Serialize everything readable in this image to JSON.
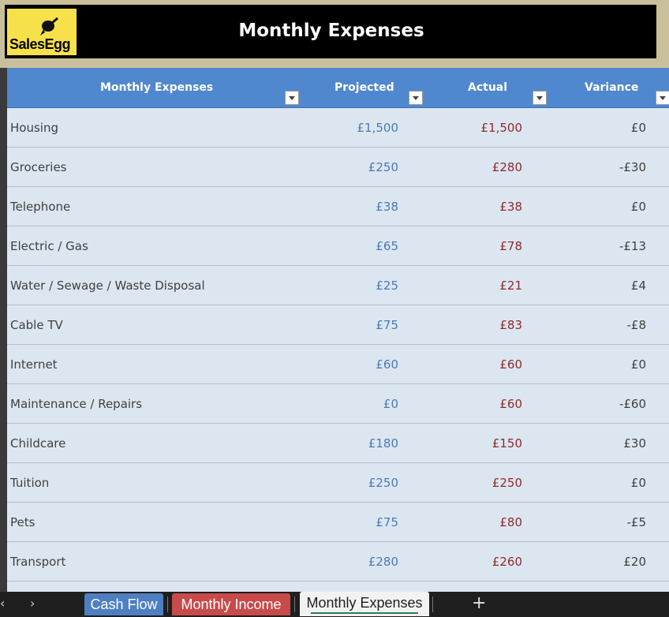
{
  "header": {
    "logo_text": "SalesEgg",
    "title": "Monthly Expenses"
  },
  "table": {
    "columns": [
      "Monthly Expenses",
      "Projected",
      "Actual",
      "Variance"
    ],
    "rows": [
      {
        "name": "Housing",
        "projected": "£1,500",
        "actual": "£1,500",
        "variance": "£0"
      },
      {
        "name": "Groceries",
        "projected": "£250",
        "actual": "£280",
        "variance": "-£30"
      },
      {
        "name": "Telephone",
        "projected": "£38",
        "actual": "£38",
        "variance": "£0"
      },
      {
        "name": "Electric / Gas",
        "projected": "£65",
        "actual": "£78",
        "variance": "-£13"
      },
      {
        "name": "Water / Sewage / Waste Disposal",
        "projected": "£25",
        "actual": "£21",
        "variance": "£4"
      },
      {
        "name": "Cable TV",
        "projected": "£75",
        "actual": "£83",
        "variance": "-£8"
      },
      {
        "name": "Internet",
        "projected": "£60",
        "actual": "£60",
        "variance": "£0"
      },
      {
        "name": "Maintenance / Repairs",
        "projected": "£0",
        "actual": "£60",
        "variance": "-£60"
      },
      {
        "name": "Childcare",
        "projected": "£180",
        "actual": "£150",
        "variance": "£30"
      },
      {
        "name": "Tuition",
        "projected": "£250",
        "actual": "£250",
        "variance": "£0"
      },
      {
        "name": "Pets",
        "projected": "£75",
        "actual": "£80",
        "variance": "-£5"
      },
      {
        "name": "Transport",
        "projected": "£280",
        "actual": "£260",
        "variance": "£20"
      }
    ]
  },
  "tabs": {
    "prev_icon": "chevron-left-icon",
    "next_icon": "chevron-right-icon",
    "items": [
      {
        "label": "Cash Flow",
        "color": "#4e7fc3"
      },
      {
        "label": "Monthly Income",
        "color": "#c94a4a"
      },
      {
        "label": "Monthly Expenses",
        "active": true
      }
    ],
    "add_icon": "plus-icon"
  },
  "colors": {
    "header_bg": "#000000",
    "table_header": "#4f88cf",
    "row_bg": "#dce6f0",
    "projected_text": "#4a7ab8",
    "actual_text": "#8e2a2a",
    "logo_bg": "#f6e14a"
  }
}
